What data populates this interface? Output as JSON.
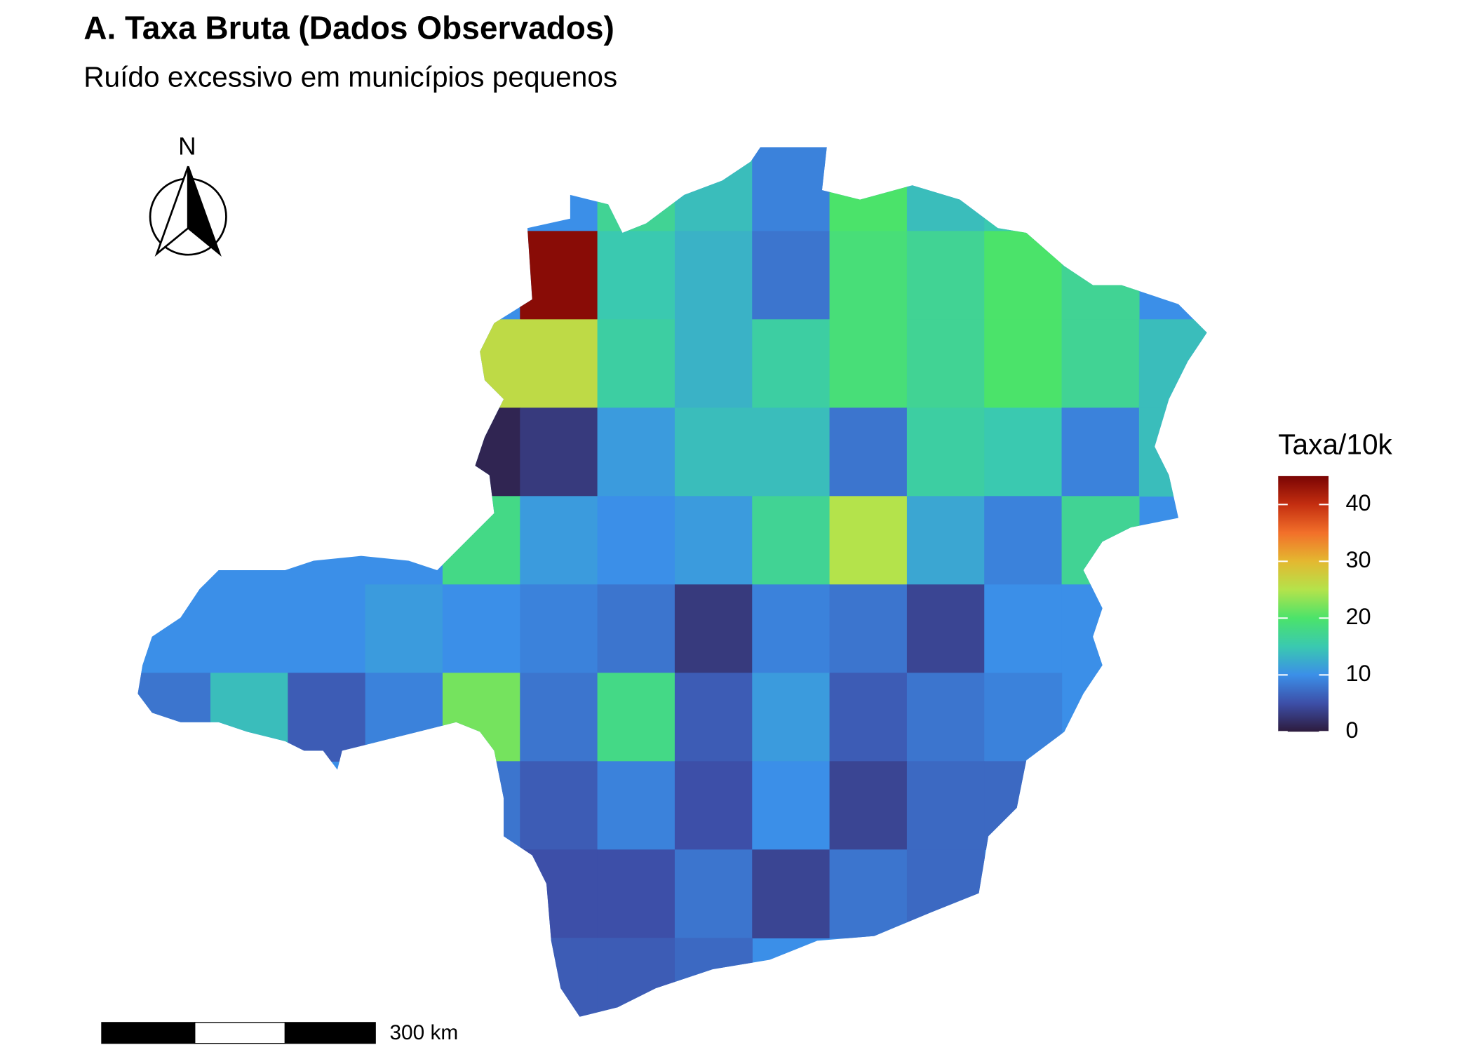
{
  "title": "A. Taxa Bruta (Dados Observados)",
  "subtitle": "Ruído excessivo em municípios pequenos",
  "north_label": "N",
  "scale_bar_label": "300 km",
  "legend": {
    "title": "Taxa/10k",
    "lim": [
      0,
      45
    ],
    "ticks": [
      0,
      10,
      20,
      30,
      40
    ],
    "colorscale": [
      {
        "value": 0,
        "color": "#2d1b3d"
      },
      {
        "value": 5,
        "color": "#3d4fa8"
      },
      {
        "value": 10,
        "color": "#3b8fe8"
      },
      {
        "value": 15,
        "color": "#3ac9b0"
      },
      {
        "value": 20,
        "color": "#4be36a"
      },
      {
        "value": 25,
        "color": "#b4e34b"
      },
      {
        "value": 30,
        "color": "#e4b830"
      },
      {
        "value": 35,
        "color": "#f2702a"
      },
      {
        "value": 40,
        "color": "#c42e10"
      },
      {
        "value": 45,
        "color": "#7a0403"
      }
    ]
  },
  "map_data": {
    "values": [
      [
        null,
        null,
        null,
        null,
        null,
        null,
        17,
        14,
        9,
        20,
        14,
        15,
        null,
        null
      ],
      [
        null,
        null,
        null,
        null,
        null,
        44,
        15,
        13,
        8,
        19,
        17,
        20,
        17,
        null
      ],
      [
        null,
        null,
        null,
        null,
        26,
        26,
        16,
        13,
        16,
        19,
        17,
        20,
        17,
        14
      ],
      [
        null,
        null,
        null,
        null,
        1,
        3,
        11,
        14,
        14,
        8,
        16,
        15,
        9,
        14
      ],
      [
        null,
        null,
        null,
        null,
        18,
        11,
        10,
        11,
        17,
        25,
        12,
        9,
        17,
        null
      ],
      [
        10,
        10,
        10,
        11,
        10,
        9,
        8,
        3,
        9,
        8,
        4,
        10,
        10,
        null
      ],
      [
        8,
        14,
        6,
        9,
        22,
        8,
        18,
        6,
        11,
        6,
        8,
        9,
        null,
        null
      ],
      [
        null,
        null,
        null,
        null,
        8,
        6,
        9,
        5,
        10,
        4,
        7,
        7,
        null,
        null
      ],
      [
        null,
        null,
        null,
        null,
        null,
        5,
        5,
        8,
        4,
        8,
        7,
        null,
        null,
        null
      ],
      [
        null,
        null,
        null,
        null,
        null,
        6,
        6,
        7,
        null,
        null,
        null,
        null,
        null,
        null
      ]
    ]
  }
}
